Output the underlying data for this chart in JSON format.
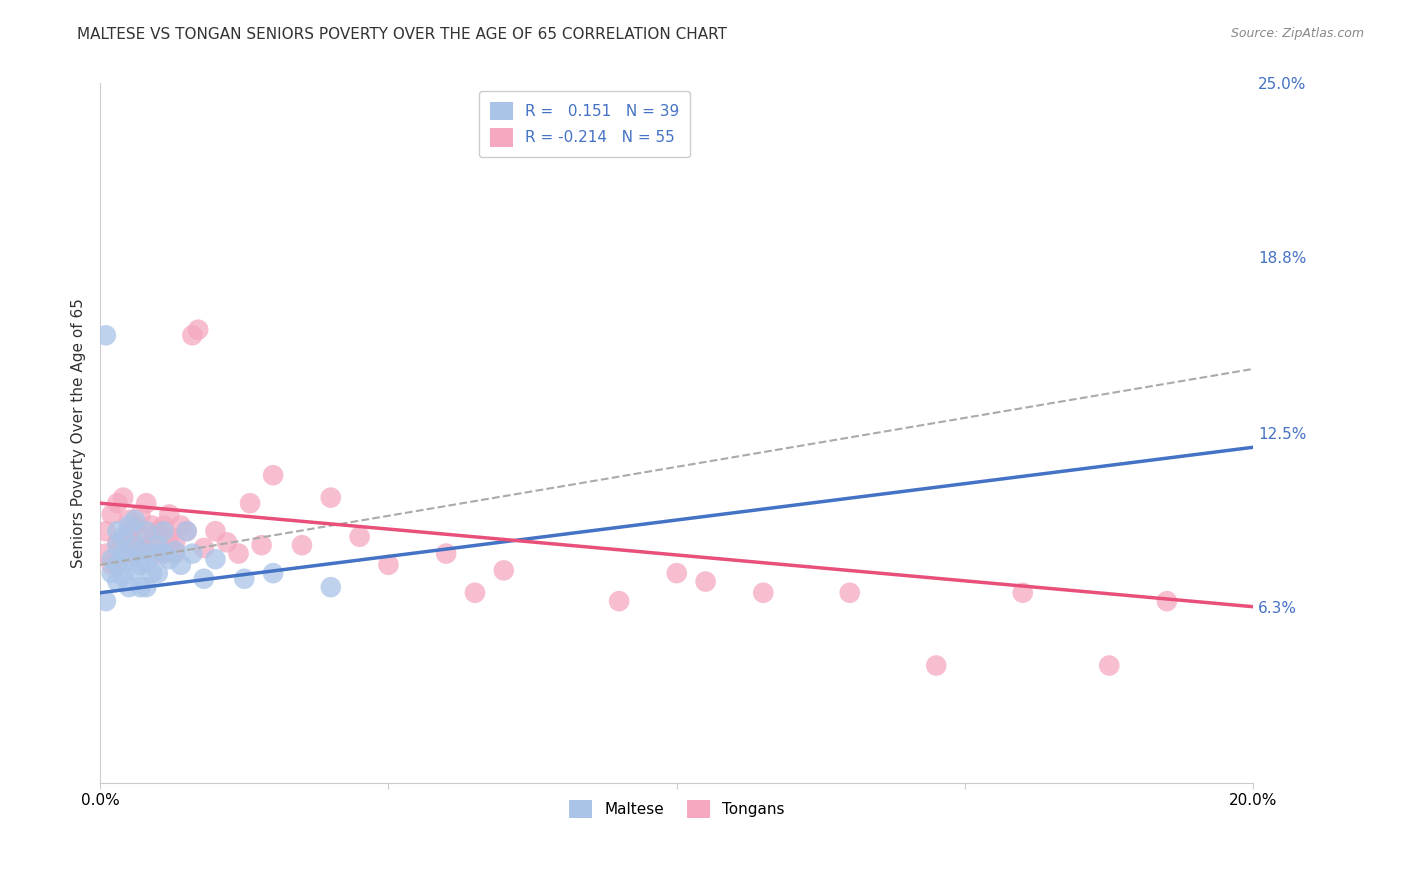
{
  "title": "MALTESE VS TONGAN SENIORS POVERTY OVER THE AGE OF 65 CORRELATION CHART",
  "source": "Source: ZipAtlas.com",
  "ylabel": "Seniors Poverty Over the Age of 65",
  "xmin": 0.0,
  "xmax": 0.2,
  "ymin": 0.0,
  "ymax": 0.25,
  "ytick_vals": [
    0.063,
    0.125,
    0.188,
    0.25
  ],
  "ytick_labels": [
    "6.3%",
    "12.5%",
    "18.8%",
    "25.0%"
  ],
  "xtick_positions": [
    0.0,
    0.05,
    0.1,
    0.15,
    0.2
  ],
  "xtick_labels": [
    "0.0%",
    "",
    "",
    "",
    "20.0%"
  ],
  "maltese_R": 0.151,
  "maltese_N": 39,
  "tongan_R": -0.214,
  "tongan_N": 55,
  "maltese_color": "#aac4e8",
  "tongan_color": "#f5a8bf",
  "maltese_line_color": "#4472c4",
  "tongan_line_color": "#e8507a",
  "dashed_line_color": "#aaaaaa",
  "background_color": "#ffffff",
  "grid_color": "#cccccc",
  "title_fontsize": 11,
  "maltese_x": [
    0.001,
    0.002,
    0.002,
    0.003,
    0.003,
    0.003,
    0.003,
    0.004,
    0.004,
    0.004,
    0.005,
    0.005,
    0.005,
    0.006,
    0.006,
    0.006,
    0.007,
    0.007,
    0.007,
    0.008,
    0.008,
    0.008,
    0.009,
    0.009,
    0.01,
    0.01,
    0.011,
    0.011,
    0.012,
    0.013,
    0.014,
    0.015,
    0.016,
    0.018,
    0.02,
    0.025,
    0.03,
    0.04,
    0.001
  ],
  "maltese_y": [
    0.065,
    0.08,
    0.075,
    0.085,
    0.09,
    0.078,
    0.072,
    0.082,
    0.088,
    0.074,
    0.08,
    0.092,
    0.07,
    0.076,
    0.085,
    0.094,
    0.078,
    0.083,
    0.07,
    0.079,
    0.09,
    0.07,
    0.082,
    0.075,
    0.085,
    0.075,
    0.09,
    0.082,
    0.08,
    0.083,
    0.078,
    0.09,
    0.082,
    0.073,
    0.08,
    0.073,
    0.075,
    0.07,
    0.16
  ],
  "tongan_x": [
    0.001,
    0.001,
    0.002,
    0.002,
    0.003,
    0.003,
    0.003,
    0.004,
    0.004,
    0.005,
    0.005,
    0.005,
    0.006,
    0.006,
    0.007,
    0.007,
    0.008,
    0.008,
    0.009,
    0.009,
    0.01,
    0.01,
    0.011,
    0.011,
    0.012,
    0.012,
    0.013,
    0.013,
    0.014,
    0.015,
    0.016,
    0.017,
    0.018,
    0.02,
    0.022,
    0.024,
    0.026,
    0.028,
    0.03,
    0.035,
    0.04,
    0.045,
    0.05,
    0.06,
    0.065,
    0.07,
    0.09,
    0.1,
    0.105,
    0.115,
    0.13,
    0.145,
    0.16,
    0.175,
    0.185
  ],
  "tongan_y": [
    0.082,
    0.09,
    0.096,
    0.078,
    0.1,
    0.086,
    0.078,
    0.102,
    0.086,
    0.09,
    0.082,
    0.094,
    0.085,
    0.092,
    0.088,
    0.096,
    0.1,
    0.084,
    0.086,
    0.092,
    0.082,
    0.09,
    0.092,
    0.082,
    0.096,
    0.088,
    0.086,
    0.082,
    0.092,
    0.09,
    0.16,
    0.162,
    0.084,
    0.09,
    0.086,
    0.082,
    0.1,
    0.085,
    0.11,
    0.085,
    0.102,
    0.088,
    0.078,
    0.082,
    0.068,
    0.076,
    0.065,
    0.075,
    0.072,
    0.068,
    0.068,
    0.042,
    0.068,
    0.042,
    0.065
  ],
  "maltese_trend_x": [
    0.0,
    0.2
  ],
  "maltese_trend_y": [
    0.068,
    0.12
  ],
  "tongan_trend_x": [
    0.0,
    0.2
  ],
  "tongan_trend_y": [
    0.1,
    0.063
  ],
  "dashed_trend_x": [
    0.0,
    0.2
  ],
  "dashed_trend_y": [
    0.078,
    0.148
  ]
}
